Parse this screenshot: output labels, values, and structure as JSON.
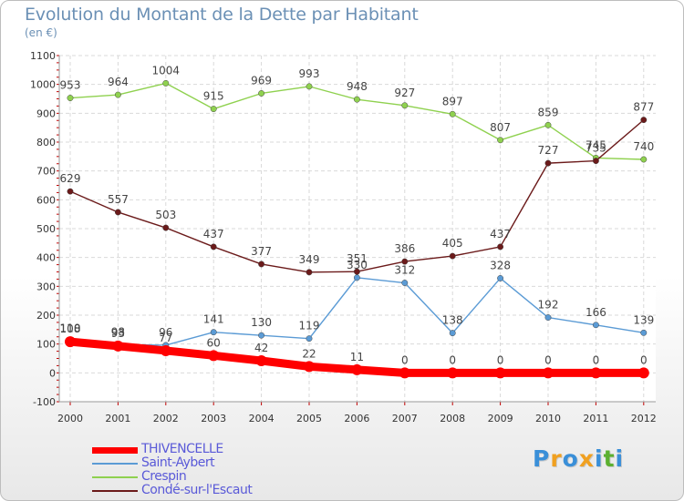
{
  "header": {
    "title": "Evolution du Montant de la Dette par Habitant",
    "unit": "(en €)"
  },
  "logo": {
    "text": "Proxiti",
    "letters": [
      {
        "ch": "P",
        "color": "#3a8fd8"
      },
      {
        "ch": "r",
        "color": "#f0a020"
      },
      {
        "ch": "o",
        "color": "#3a8fd8"
      },
      {
        "ch": "x",
        "color": "#f0a020"
      },
      {
        "ch": "i",
        "color": "#3a8fd8"
      },
      {
        "ch": "t",
        "color": "#5cb030"
      },
      {
        "ch": "i",
        "color": "#3a8fd8"
      }
    ]
  },
  "chart_data": {
    "type": "line",
    "title": "Evolution du Montant de la Dette par Habitant",
    "ylabel": "(en €)",
    "xlabel": "",
    "x": [
      "2000",
      "2001",
      "2002",
      "2003",
      "2004",
      "2005",
      "2006",
      "2007",
      "2008",
      "2009",
      "2010",
      "2011",
      "2012"
    ],
    "ylim": [
      -100,
      1100
    ],
    "yticks": [
      -100,
      0,
      100,
      200,
      300,
      400,
      500,
      600,
      700,
      800,
      900,
      1000,
      1100
    ],
    "grid": true,
    "legend_position": "bottom-left",
    "series": [
      {
        "name": "THIVENCELLE",
        "color": "#ff0000",
        "values": [
          108,
          93,
          77,
          60,
          42,
          22,
          11,
          0,
          0,
          0,
          0,
          0,
          0
        ]
      },
      {
        "name": "Saint-Aybert",
        "color": "#5b9bd5",
        "values": [
          110,
          98,
          96,
          141,
          130,
          119,
          330,
          312,
          138,
          328,
          192,
          166,
          139
        ]
      },
      {
        "name": "Crespin",
        "color": "#8fd14f",
        "values": [
          953,
          964,
          1004,
          915,
          969,
          993,
          948,
          927,
          897,
          807,
          859,
          745,
          740
        ]
      },
      {
        "name": "Condé-sur-l'Escaut",
        "color": "#6b1a1a",
        "values": [
          629,
          557,
          503,
          437,
          377,
          349,
          351,
          386,
          405,
          437,
          727,
          735,
          877
        ]
      }
    ]
  }
}
